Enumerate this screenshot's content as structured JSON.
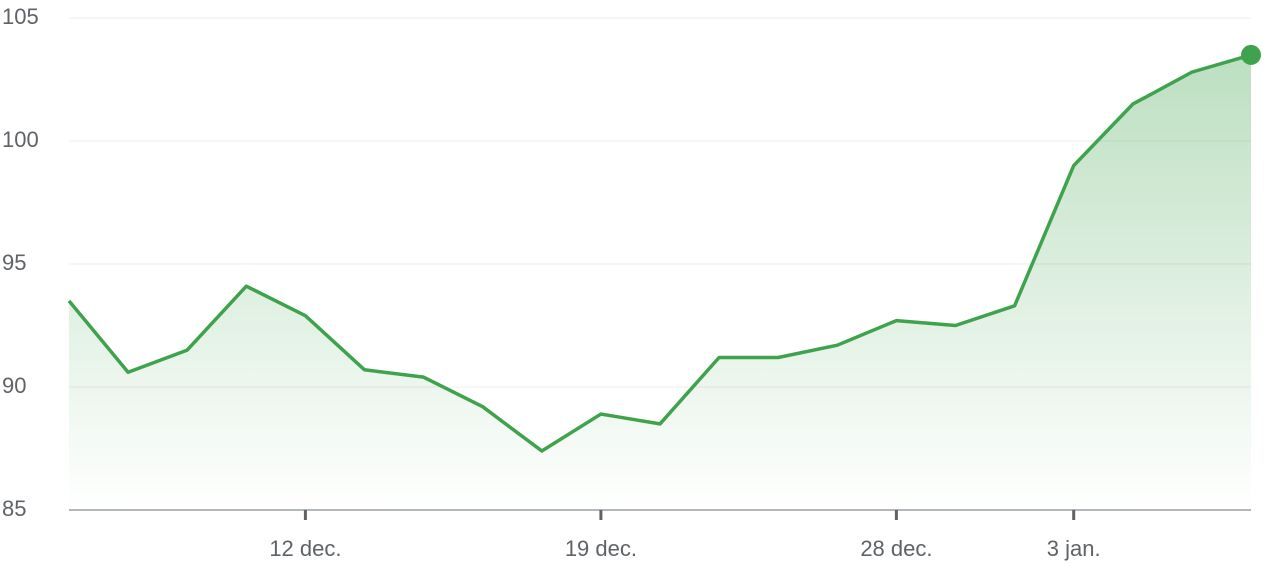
{
  "chart_data": {
    "type": "line",
    "categories": [
      null,
      null,
      null,
      null,
      "12 dec.",
      null,
      null,
      null,
      null,
      "19 dec.",
      null,
      null,
      null,
      null,
      "28 dec.",
      null,
      null,
      "3 jan.",
      null,
      null,
      null
    ],
    "values": [
      93.5,
      90.6,
      91.5,
      94.1,
      92.9,
      90.7,
      90.4,
      89.2,
      87.4,
      88.9,
      88.5,
      91.2,
      91.2,
      91.7,
      92.7,
      92.5,
      93.3,
      99.0,
      101.5,
      102.8,
      103.5
    ],
    "color": "#3fa34d",
    "ylim": [
      85,
      105
    ],
    "yticks": [
      85,
      90,
      95,
      100,
      105
    ],
    "grid": true
  }
}
